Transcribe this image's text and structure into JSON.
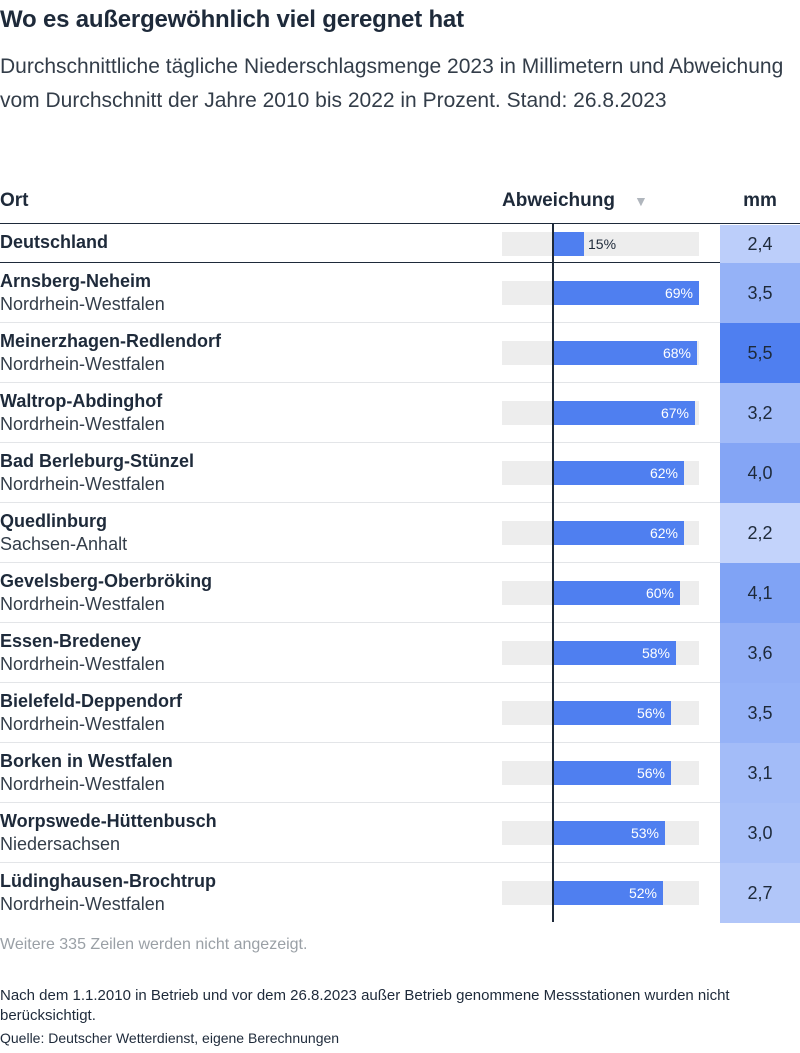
{
  "title": "Wo es außergewöhnlich viel geregnet hat",
  "subtitle": "Durchschnittliche tägliche Niederschlagsmenge 2023 in Millimetern und Abweichung vom Durchschnitt der Jahre 2010 bis 2022 in Prozent. Stand: 26.8.2023",
  "headers": {
    "ort": "Ort",
    "abweichung": "Abweichung",
    "sort_icon": "▼",
    "mm": "mm"
  },
  "colors": {
    "bar": "#4f7ff0",
    "track": "#ededed",
    "mm_low": "#c3d3fb",
    "mm_high": "#4f7ff0"
  },
  "chart_data": {
    "type": "table",
    "columns": [
      "Ort",
      "Abweichung",
      "mm"
    ],
    "bar_max": 69,
    "rows": [
      {
        "name": "Deutschland",
        "region": "",
        "abweichung": 15,
        "label": "15%",
        "mm": "2,4",
        "mm_value": 2.4
      },
      {
        "name": "Arnsberg-Neheim",
        "region": "Nordrhein-Westfalen",
        "abweichung": 69,
        "label": "69%",
        "mm": "3,5",
        "mm_value": 3.5
      },
      {
        "name": "Meinerzhagen-Redlendorf",
        "region": "Nordrhein-Westfalen",
        "abweichung": 68,
        "label": "68%",
        "mm": "5,5",
        "mm_value": 5.5
      },
      {
        "name": "Waltrop-Abdinghof",
        "region": "Nordrhein-Westfalen",
        "abweichung": 67,
        "label": "67%",
        "mm": "3,2",
        "mm_value": 3.2
      },
      {
        "name": "Bad Berleburg-Stünzel",
        "region": "Nordrhein-Westfalen",
        "abweichung": 62,
        "label": "62%",
        "mm": "4,0",
        "mm_value": 4.0
      },
      {
        "name": "Quedlinburg",
        "region": "Sachsen-Anhalt",
        "abweichung": 62,
        "label": "62%",
        "mm": "2,2",
        "mm_value": 2.2
      },
      {
        "name": "Gevelsberg-Oberbröking",
        "region": "Nordrhein-Westfalen",
        "abweichung": 60,
        "label": "60%",
        "mm": "4,1",
        "mm_value": 4.1
      },
      {
        "name": "Essen-Bredeney",
        "region": "Nordrhein-Westfalen",
        "abweichung": 58,
        "label": "58%",
        "mm": "3,6",
        "mm_value": 3.6
      },
      {
        "name": "Bielefeld-Deppendorf",
        "region": "Nordrhein-Westfalen",
        "abweichung": 56,
        "label": "56%",
        "mm": "3,5",
        "mm_value": 3.5
      },
      {
        "name": "Borken in Westfalen",
        "region": "Nordrhein-Westfalen",
        "abweichung": 56,
        "label": "56%",
        "mm": "3,1",
        "mm_value": 3.1
      },
      {
        "name": "Worpswede-Hüttenbusch",
        "region": "Niedersachsen",
        "abweichung": 53,
        "label": "53%",
        "mm": "3,0",
        "mm_value": 3.0
      },
      {
        "name": "Lüdinghausen-Brochtrup",
        "region": "Nordrhein-Westfalen",
        "abweichung": 52,
        "label": "52%",
        "mm": "2,7",
        "mm_value": 2.7
      }
    ]
  },
  "more_rows": "Weitere 335 Zeilen werden nicht angezeigt.",
  "note": "Nach dem 1.1.2010 in Betrieb und vor dem 26.8.2023 außer Betrieb genommene Messstationen wurden nicht berücksichtigt.",
  "source": "Quelle: Deutscher Wetterdienst, eigene Berechnungen"
}
